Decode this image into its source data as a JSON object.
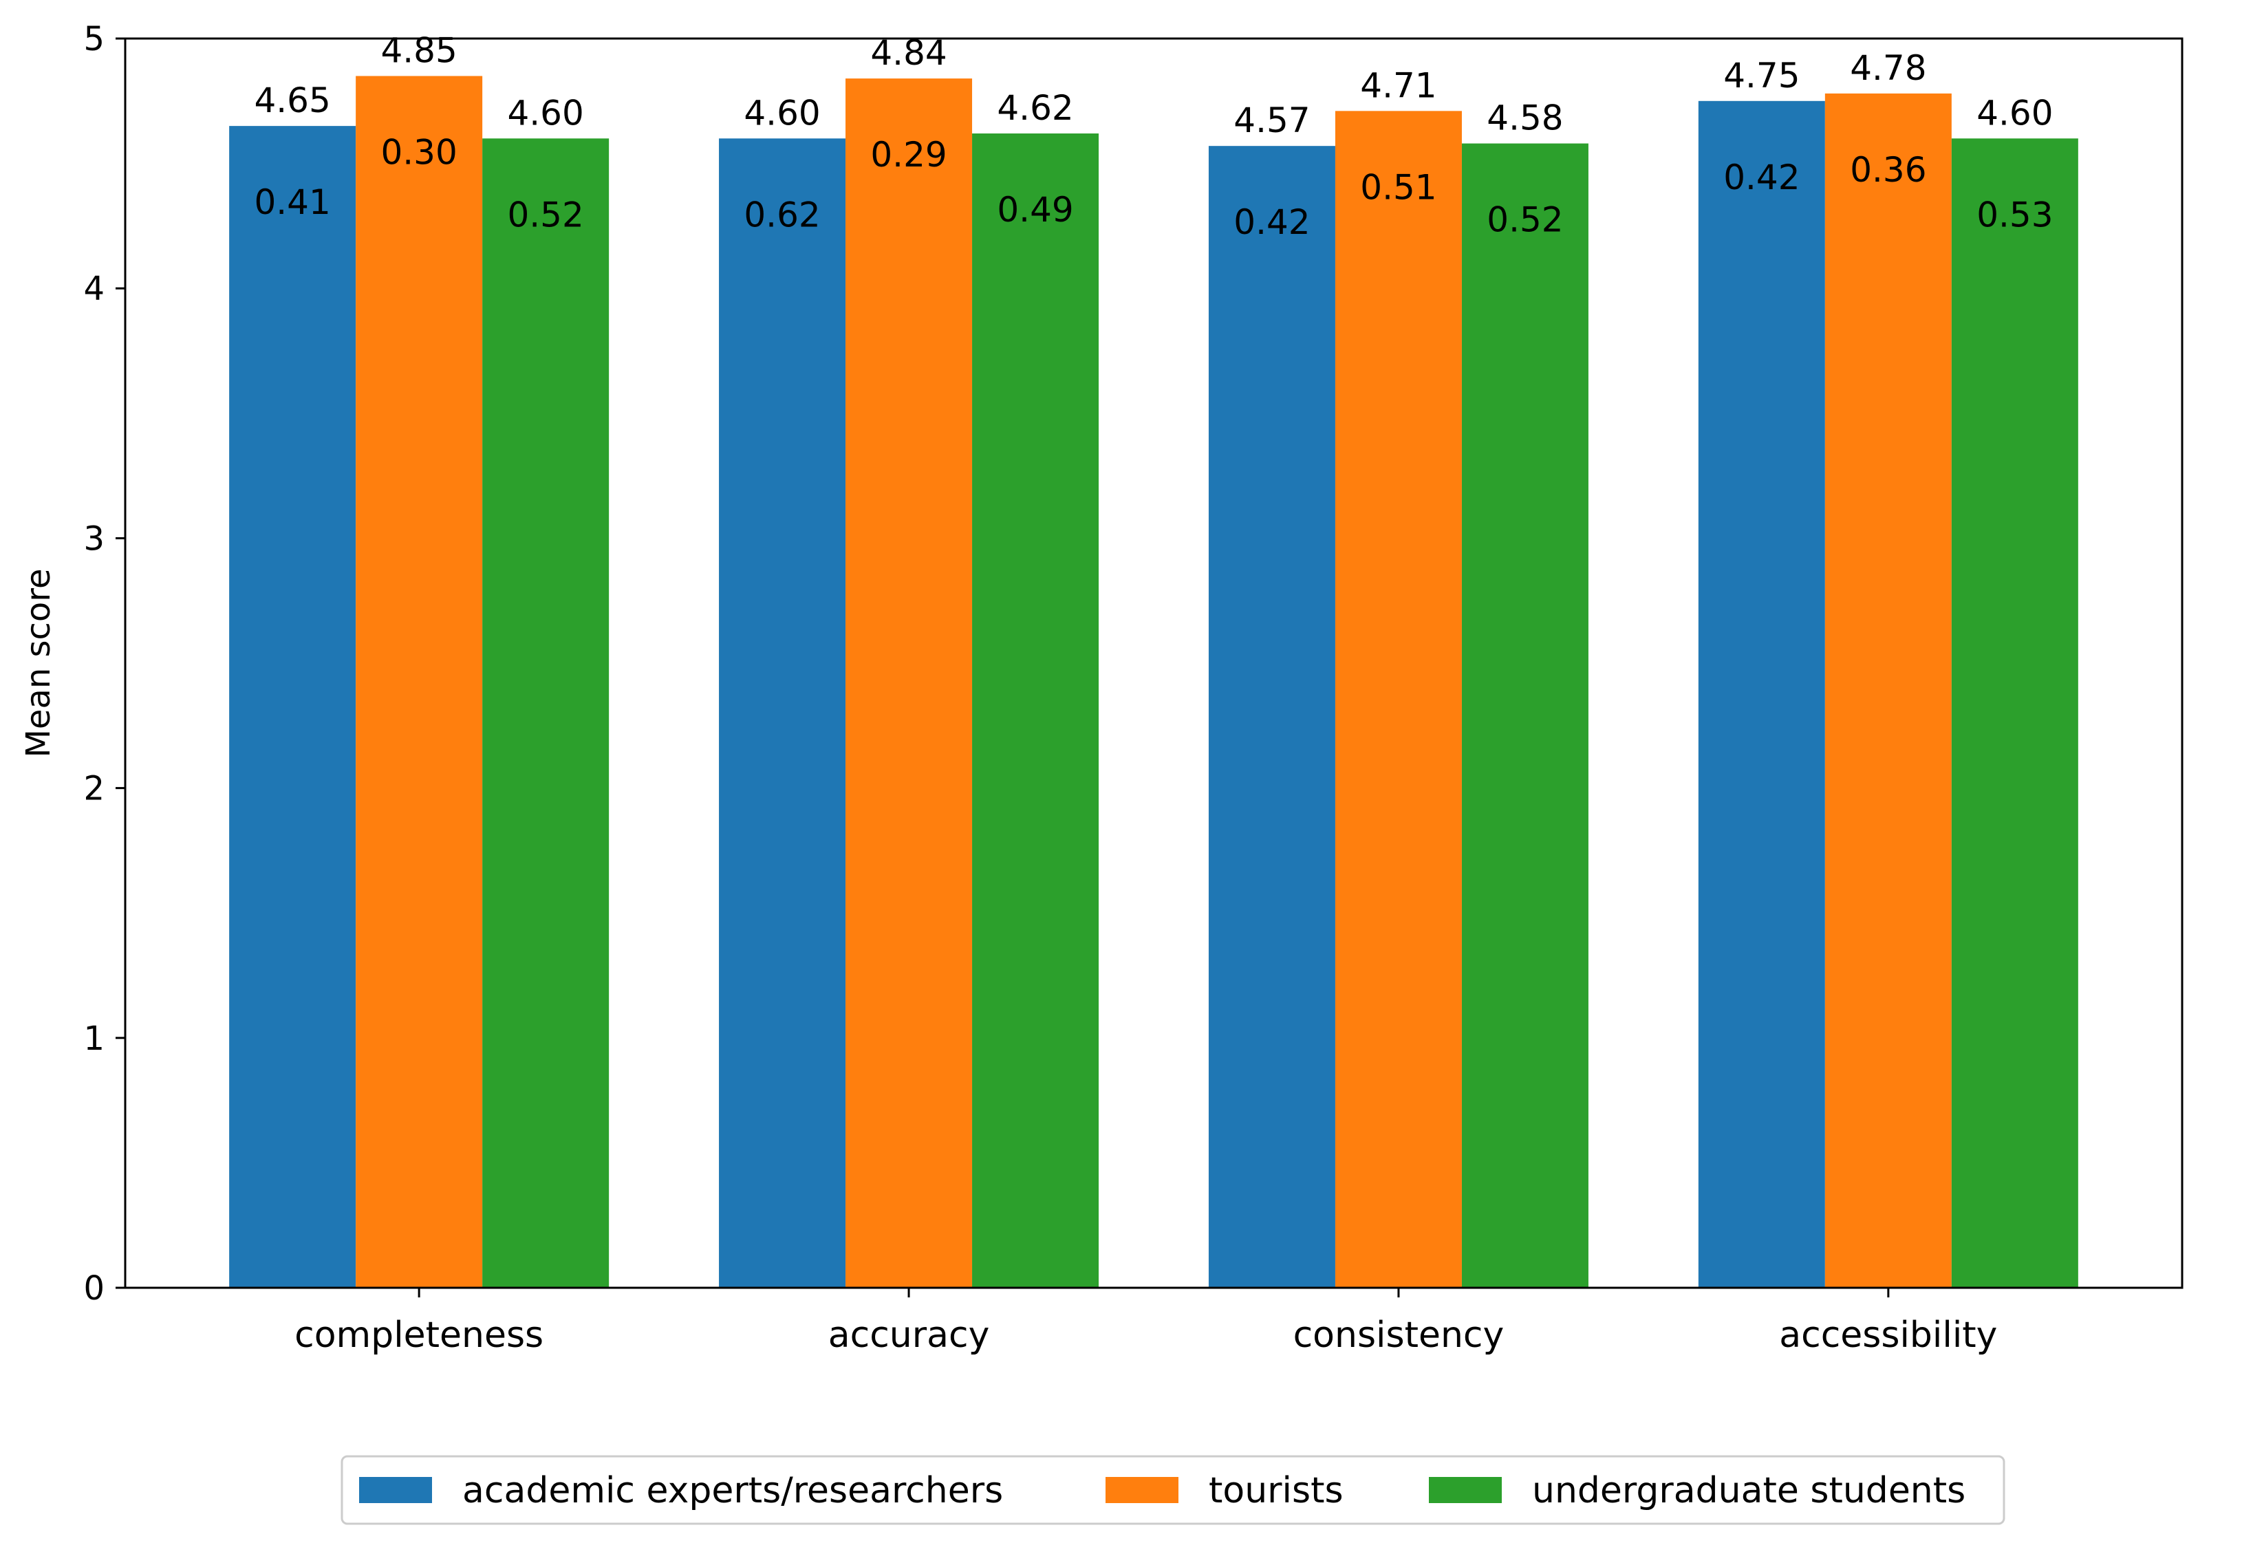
{
  "chart_data": {
    "type": "bar",
    "title": "",
    "xlabel": "",
    "ylabel": "Mean score",
    "ylim": [
      0,
      5
    ],
    "yticks": [
      0,
      1,
      2,
      3,
      4,
      5
    ],
    "categories": [
      "completeness",
      "accuracy",
      "consistency",
      "accessibility"
    ],
    "series": [
      {
        "name": "academic experts/researchers",
        "color": "#1f77b4",
        "values": [
          4.65,
          4.6,
          4.57,
          4.75
        ],
        "value_labels": [
          "4.65",
          "4.60",
          "4.57",
          "4.75"
        ],
        "sd_labels": [
          "0.41",
          "0.62",
          "0.42",
          "0.42"
        ]
      },
      {
        "name": "tourists",
        "color": "#ff7f0e",
        "values": [
          4.85,
          4.84,
          4.71,
          4.78
        ],
        "value_labels": [
          "4.85",
          "4.84",
          "4.71",
          "4.78"
        ],
        "sd_labels": [
          "0.30",
          "0.29",
          "0.51",
          "0.36"
        ]
      },
      {
        "name": "undergraduate students",
        "color": "#2ca02c",
        "values": [
          4.6,
          4.62,
          4.58,
          4.6
        ],
        "value_labels": [
          "4.60",
          "4.62",
          "4.58",
          "4.60"
        ],
        "sd_labels": [
          "0.52",
          "0.49",
          "0.52",
          "0.53"
        ]
      }
    ],
    "grid": false,
    "legend_position": "bottom-center"
  }
}
